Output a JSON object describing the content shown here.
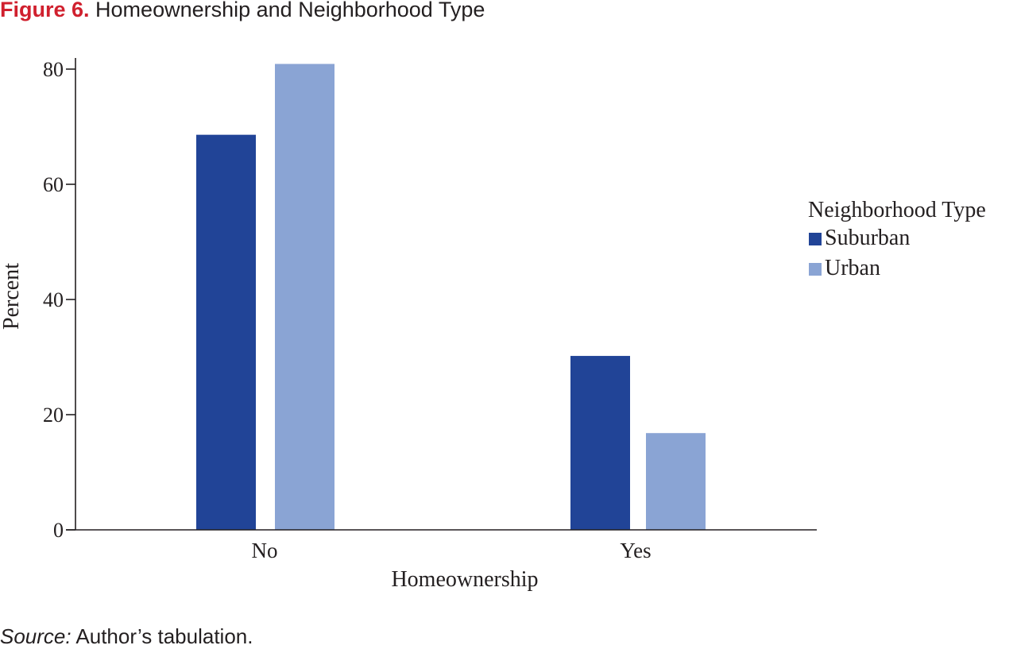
{
  "figure": {
    "label": "Figure 6.",
    "title": "Homeownership and Neighborhood Type",
    "source_label": "Source:",
    "source_text": " Author’s tabulation."
  },
  "colors": {
    "accent": "#d0202e",
    "suburban": "#214497",
    "urban": "#8aa4d4",
    "axis": "#231f20"
  },
  "chart_data": {
    "type": "bar",
    "categories": [
      "No",
      "Yes"
    ],
    "series": [
      {
        "name": "Suburban",
        "values": [
          68.6,
          30.2
        ]
      },
      {
        "name": "Urban",
        "values": [
          80.9,
          16.8
        ]
      }
    ],
    "xlabel": "Homeownership",
    "ylabel": "Percent",
    "ylim": [
      0,
      80
    ],
    "yticks": [
      0,
      20,
      40,
      60,
      80
    ],
    "legend_title": "Neighborhood Type",
    "legend_position": "right",
    "grid": false
  }
}
